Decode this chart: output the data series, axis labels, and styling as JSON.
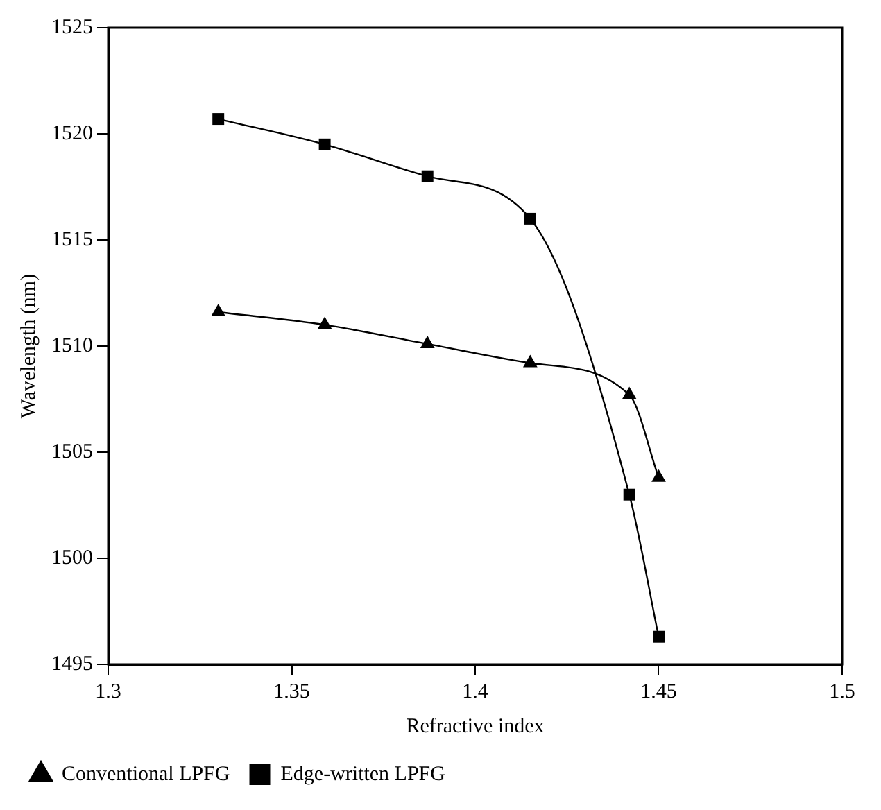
{
  "chart_data": {
    "type": "line",
    "xlabel": "Refractive index",
    "ylabel": "Wavelength (nm)",
    "xlim": [
      1.3,
      1.5
    ],
    "xticks": [
      1.3,
      1.35,
      1.4,
      1.45,
      1.5
    ],
    "ylim": [
      1495,
      1525
    ],
    "yticks": [
      1495,
      1500,
      1505,
      1510,
      1515,
      1520,
      1525
    ],
    "grid": false,
    "legend": "bottom left",
    "series": [
      {
        "name": "Conventional LPFG",
        "color": "#000000",
        "marker": "triangle",
        "x": [
          1.33,
          1.359,
          1.387,
          1.415,
          1.442,
          1.45
        ],
        "values": [
          1511.6,
          1511.0,
          1510.1,
          1509.2,
          1507.7,
          1503.8
        ]
      },
      {
        "name": "Edge-written LPFG",
        "color": "#000000",
        "marker": "square",
        "x": [
          1.33,
          1.359,
          1.387,
          1.415,
          1.442,
          1.45
        ],
        "values": [
          1520.7,
          1519.5,
          1518.0,
          1516.0,
          1503.0,
          1496.3
        ]
      }
    ]
  }
}
